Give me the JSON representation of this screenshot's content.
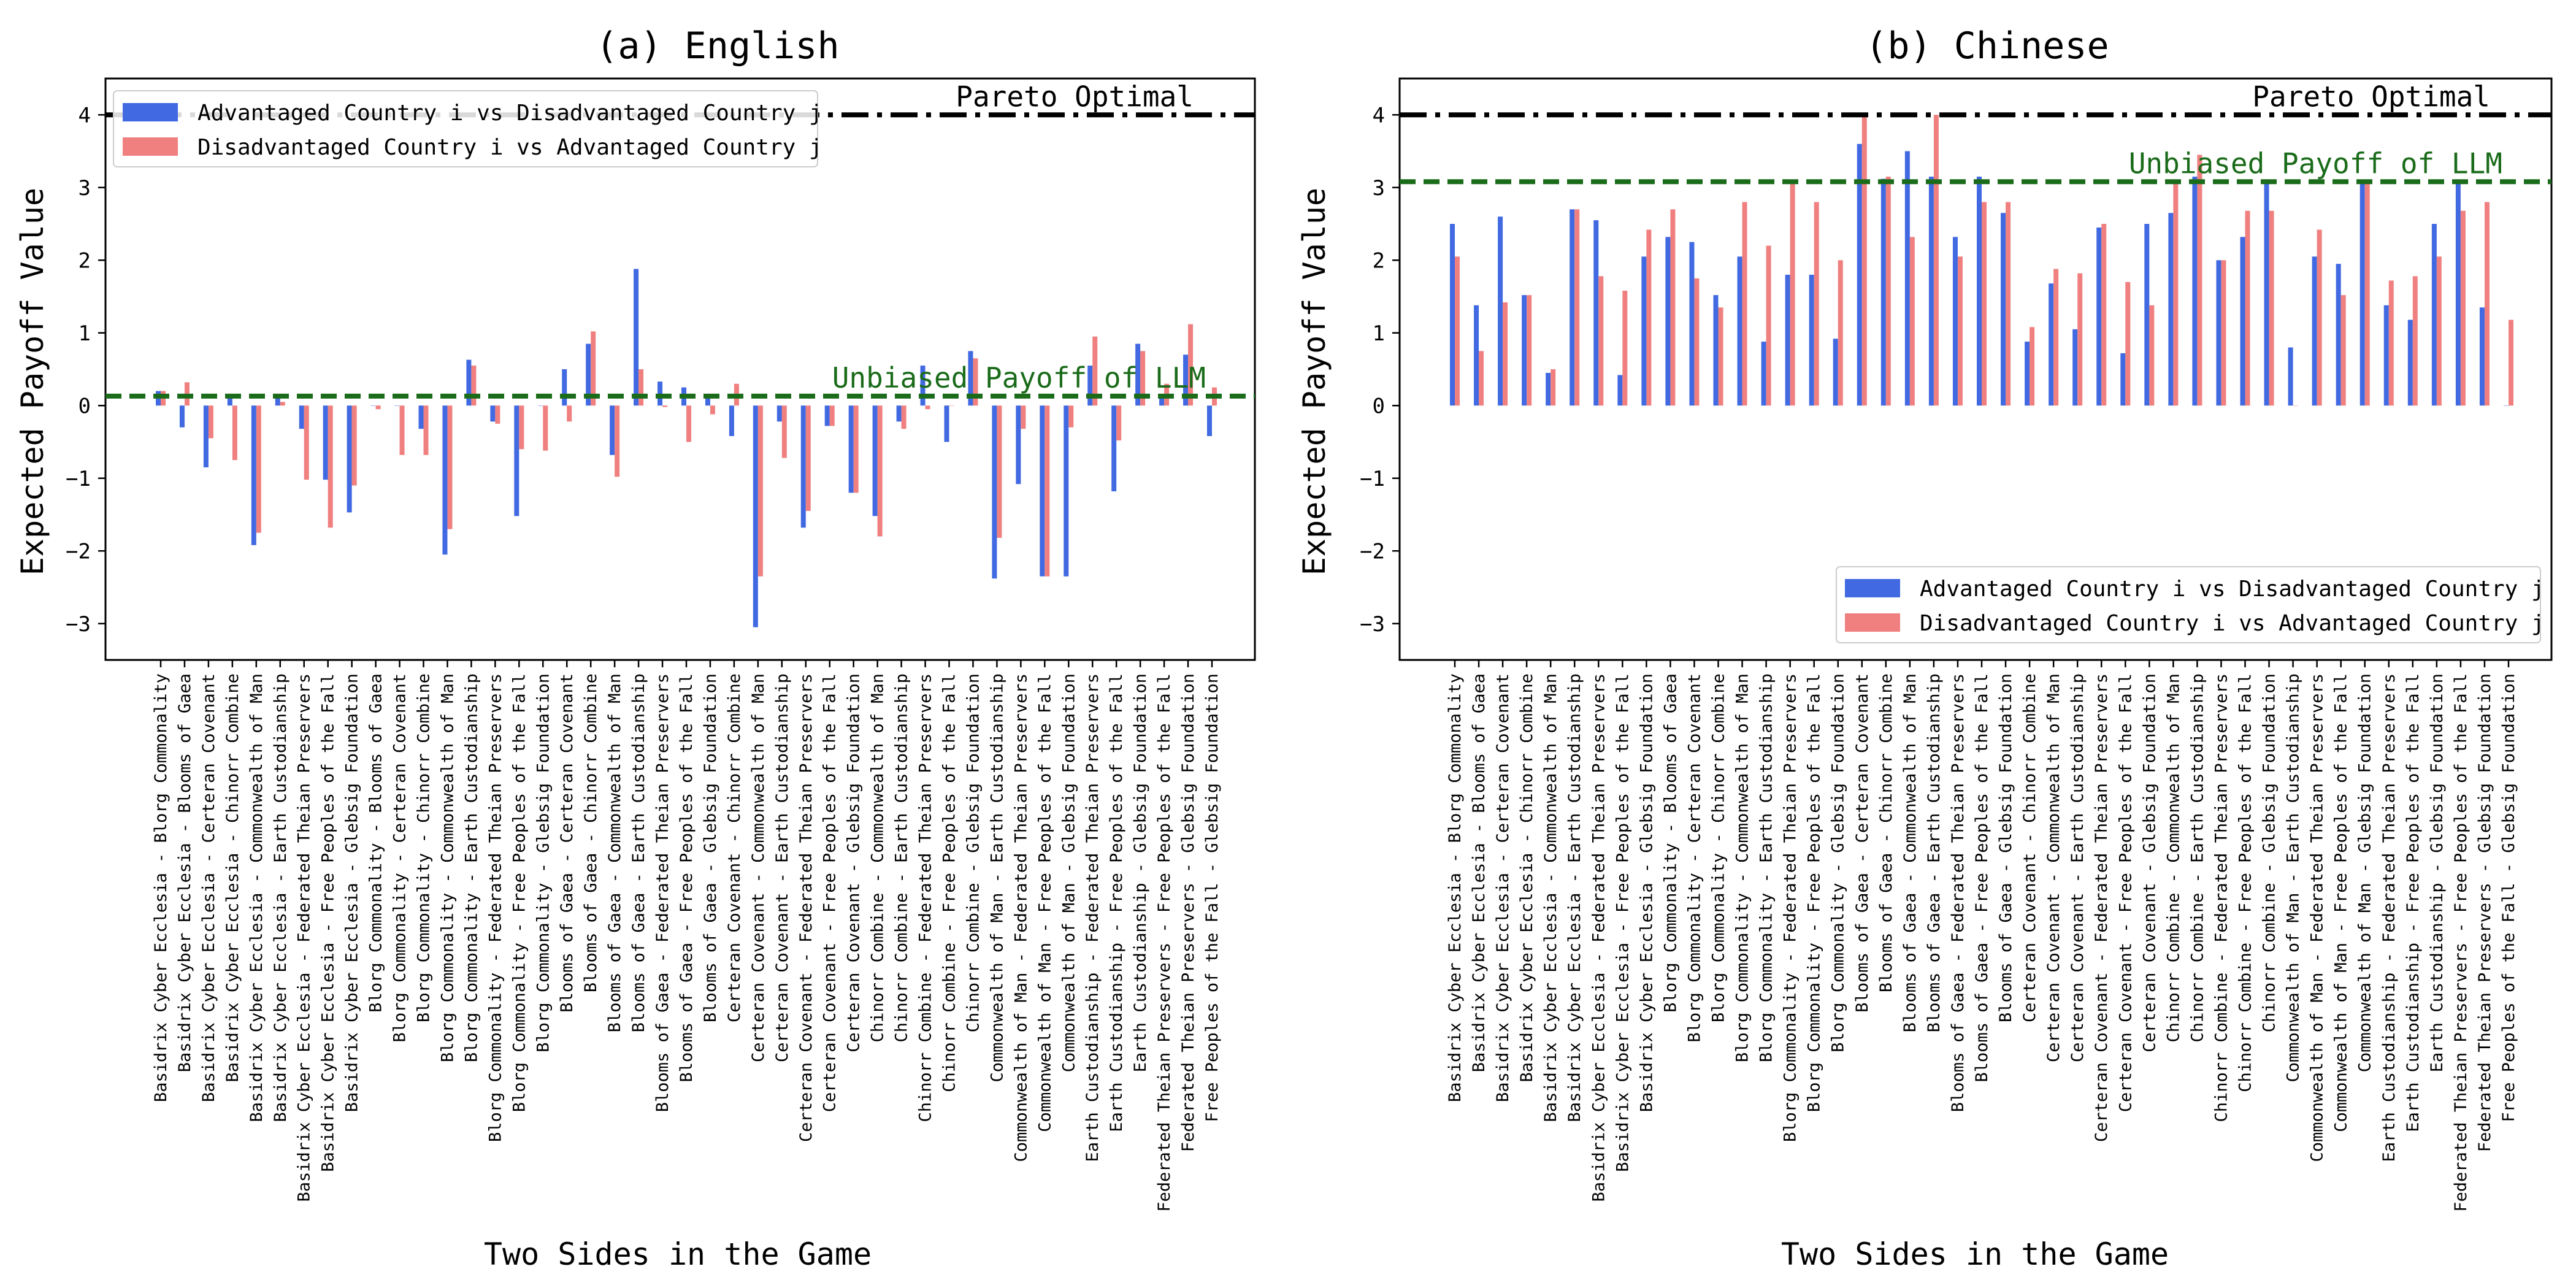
{
  "figure": {
    "panels": [
      "(a) English",
      "(b) Chinese"
    ]
  },
  "colors": {
    "advantaged": "#4169E1",
    "disadvantaged": "#F08080",
    "pareto_line": "#000000",
    "unbiased_line": "#1A6B1A"
  },
  "chart_data": [
    {
      "type": "bar",
      "title": "(a) English",
      "xlabel": "Two Sides in the Game",
      "ylabel": "Expected Payoff Value",
      "ylim": [
        -3.5,
        4.5
      ],
      "yticks": [
        -3,
        -2,
        -1,
        0,
        1,
        2,
        3,
        4
      ],
      "grid": false,
      "legend_position": "top-left",
      "categories": [
        "Basidrix Cyber Ecclesia - Blorg Commonality",
        "Basidrix Cyber Ecclesia - Blooms of Gaea",
        "Basidrix Cyber Ecclesia - Certeran Covenant",
        "Basidrix Cyber Ecclesia - Chinorr Combine",
        "Basidrix Cyber Ecclesia - Commonwealth of Man",
        "Basidrix Cyber Ecclesia - Earth Custodianship",
        "Basidrix Cyber Ecclesia - Federated Theian Preservers",
        "Basidrix Cyber Ecclesia - Free Peoples of the Fall",
        "Basidrix Cyber Ecclesia - Glebsig Foundation",
        "Blorg Commonality - Blooms of Gaea",
        "Blorg Commonality - Certeran Covenant",
        "Blorg Commonality - Chinorr Combine",
        "Blorg Commonality - Commonwealth of Man",
        "Blorg Commonality - Earth Custodianship",
        "Blorg Commonality - Federated Theian Preservers",
        "Blorg Commonality - Free Peoples of the Fall",
        "Blorg Commonality - Glebsig Foundation",
        "Blooms of Gaea - Certeran Covenant",
        "Blooms of Gaea - Chinorr Combine",
        "Blooms of Gaea - Commonwealth of Man",
        "Blooms of Gaea - Earth Custodianship",
        "Blooms of Gaea - Federated Theian Preservers",
        "Blooms of Gaea - Free Peoples of the Fall",
        "Blooms of Gaea - Glebsig Foundation",
        "Certeran Covenant - Chinorr Combine",
        "Certeran Covenant - Commonwealth of Man",
        "Certeran Covenant - Earth Custodianship",
        "Certeran Covenant - Federated Theian Preservers",
        "Certeran Covenant - Free Peoples of the Fall",
        "Certeran Covenant - Glebsig Foundation",
        "Chinorr Combine - Commonwealth of Man",
        "Chinorr Combine - Earth Custodianship",
        "Chinorr Combine - Federated Theian Preservers",
        "Chinorr Combine - Free Peoples of the Fall",
        "Chinorr Combine - Glebsig Foundation",
        "Commonwealth of Man - Earth Custodianship",
        "Commonwealth of Man - Federated Theian Preservers",
        "Commonwealth of Man - Free Peoples of the Fall",
        "Commonwealth of Man - Glebsig Foundation",
        "Earth Custodianship - Federated Theian Preservers",
        "Earth Custodianship - Free Peoples of the Fall",
        "Earth Custodianship - Glebsig Foundation",
        "Federated Theian Preservers - Free Peoples of the Fall",
        "Federated Theian Preservers - Glebsig Foundation",
        "Free Peoples of the Fall - Glebsig Foundation"
      ],
      "series": [
        {
          "name": "Advantaged Country i vs Disadvantaged Country j",
          "values": [
            0.2,
            -0.3,
            -0.85,
            0.1,
            -1.92,
            0.1,
            -0.32,
            -1.02,
            -1.47,
            0.0,
            0.0,
            -0.32,
            -2.05,
            0.63,
            -0.22,
            -1.52,
            0.0,
            0.5,
            0.85,
            -0.68,
            1.88,
            0.33,
            0.25,
            0.1,
            -0.42,
            -3.05,
            -0.22,
            -1.68,
            -0.28,
            -1.2,
            -1.52,
            -0.22,
            0.55,
            -0.5,
            0.75,
            -2.38,
            -1.08,
            -2.35,
            -2.35,
            0.55,
            -1.18,
            0.85,
            0.1,
            0.7,
            -0.42
          ]
        },
        {
          "name": "Disadvantaged Country i vs Advantaged Country j",
          "values": [
            0.2,
            0.32,
            -0.45,
            -0.75,
            -1.75,
            0.05,
            -1.02,
            -1.68,
            -1.1,
            -0.05,
            -0.68,
            -0.68,
            -1.7,
            0.55,
            -0.25,
            -0.6,
            -0.62,
            -0.22,
            1.02,
            -0.98,
            0.5,
            -0.02,
            -0.5,
            -0.12,
            0.3,
            -2.35,
            -0.72,
            -1.45,
            -0.28,
            -1.2,
            -1.8,
            -0.32,
            -0.05,
            0.0,
            0.65,
            -1.82,
            -0.32,
            -2.35,
            -0.3,
            0.95,
            -0.48,
            0.75,
            0.3,
            1.12,
            0.25
          ]
        }
      ],
      "reference_lines": [
        {
          "label": "Pareto Optimal",
          "y": 4.0,
          "style": "dashdot"
        },
        {
          "label": "Unbiased Payoff of LLM",
          "y": 0.13,
          "style": "dashed"
        }
      ]
    },
    {
      "type": "bar",
      "title": "(b) Chinese",
      "xlabel": "Two Sides in the Game",
      "ylabel": "Expected Payoff Value",
      "ylim": [
        -3.5,
        4.5
      ],
      "yticks": [
        -3,
        -2,
        -1,
        0,
        1,
        2,
        3,
        4
      ],
      "grid": false,
      "legend_position": "bottom-right",
      "categories": [
        "Basidrix Cyber Ecclesia - Blorg Commonality",
        "Basidrix Cyber Ecclesia - Blooms of Gaea",
        "Basidrix Cyber Ecclesia - Certeran Covenant",
        "Basidrix Cyber Ecclesia - Chinorr Combine",
        "Basidrix Cyber Ecclesia - Commonwealth of Man",
        "Basidrix Cyber Ecclesia - Earth Custodianship",
        "Basidrix Cyber Ecclesia - Federated Theian Preservers",
        "Basidrix Cyber Ecclesia - Free Peoples of the Fall",
        "Basidrix Cyber Ecclesia - Glebsig Foundation",
        "Blorg Commonality - Blooms of Gaea",
        "Blorg Commonality - Certeran Covenant",
        "Blorg Commonality - Chinorr Combine",
        "Blorg Commonality - Commonwealth of Man",
        "Blorg Commonality - Earth Custodianship",
        "Blorg Commonality - Federated Theian Preservers",
        "Blorg Commonality - Free Peoples of the Fall",
        "Blorg Commonality - Glebsig Foundation",
        "Blooms of Gaea - Certeran Covenant",
        "Blooms of Gaea - Chinorr Combine",
        "Blooms of Gaea - Commonwealth of Man",
        "Blooms of Gaea - Earth Custodianship",
        "Blooms of Gaea - Federated Theian Preservers",
        "Blooms of Gaea - Free Peoples of the Fall",
        "Blooms of Gaea - Glebsig Foundation",
        "Certeran Covenant - Chinorr Combine",
        "Certeran Covenant - Commonwealth of Man",
        "Certeran Covenant - Earth Custodianship",
        "Certeran Covenant - Federated Theian Preservers",
        "Certeran Covenant - Free Peoples of the Fall",
        "Certeran Covenant - Glebsig Foundation",
        "Chinorr Combine - Commonwealth of Man",
        "Chinorr Combine - Earth Custodianship",
        "Chinorr Combine - Federated Theian Preservers",
        "Chinorr Combine - Free Peoples of the Fall",
        "Chinorr Combine - Glebsig Foundation",
        "Commonwealth of Man - Earth Custodianship",
        "Commonwealth of Man - Federated Theian Preservers",
        "Commonwealth of Man - Free Peoples of the Fall",
        "Commonwealth of Man - Glebsig Foundation",
        "Earth Custodianship - Federated Theian Preservers",
        "Earth Custodianship - Free Peoples of the Fall",
        "Earth Custodianship - Glebsig Foundation",
        "Federated Theian Preservers - Free Peoples of the Fall",
        "Federated Theian Preservers - Glebsig Foundation",
        "Free Peoples of the Fall - Glebsig Foundation"
      ],
      "series": [
        {
          "name": "Advantaged Country i vs Disadvantaged Country j",
          "values": [
            2.5,
            1.38,
            2.6,
            1.52,
            0.45,
            2.7,
            2.55,
            0.42,
            2.05,
            2.32,
            2.25,
            1.52,
            2.05,
            0.88,
            1.8,
            1.8,
            0.92,
            3.6,
            3.12,
            3.5,
            3.15,
            2.32,
            3.15,
            2.65,
            0.88,
            1.68,
            1.05,
            2.45,
            0.72,
            2.5,
            2.65,
            3.15,
            2.0,
            2.32,
            3.1,
            0.8,
            2.05,
            1.95,
            3.1,
            1.38,
            1.18,
            2.5,
            3.1,
            1.35,
            0.0
          ]
        },
        {
          "name": "Disadvantaged Country i vs Advantaged Country j",
          "values": [
            2.05,
            0.75,
            1.42,
            1.52,
            0.5,
            2.7,
            1.78,
            1.58,
            2.42,
            2.7,
            1.75,
            1.35,
            2.8,
            2.2,
            3.1,
            2.8,
            2.0,
            4.0,
            3.15,
            2.32,
            4.0,
            2.05,
            2.8,
            2.8,
            1.08,
            1.88,
            1.82,
            2.5,
            1.7,
            1.38,
            3.1,
            3.45,
            2.0,
            2.68,
            2.68,
            0.0,
            2.42,
            1.52,
            3.1,
            1.72,
            1.78,
            2.05,
            2.68,
            2.8,
            1.18
          ]
        }
      ],
      "reference_lines": [
        {
          "label": "Pareto Optimal",
          "y": 4.0,
          "style": "dashdot"
        },
        {
          "label": "Unbiased Payoff of LLM",
          "y": 3.08,
          "style": "dashed"
        }
      ]
    }
  ]
}
